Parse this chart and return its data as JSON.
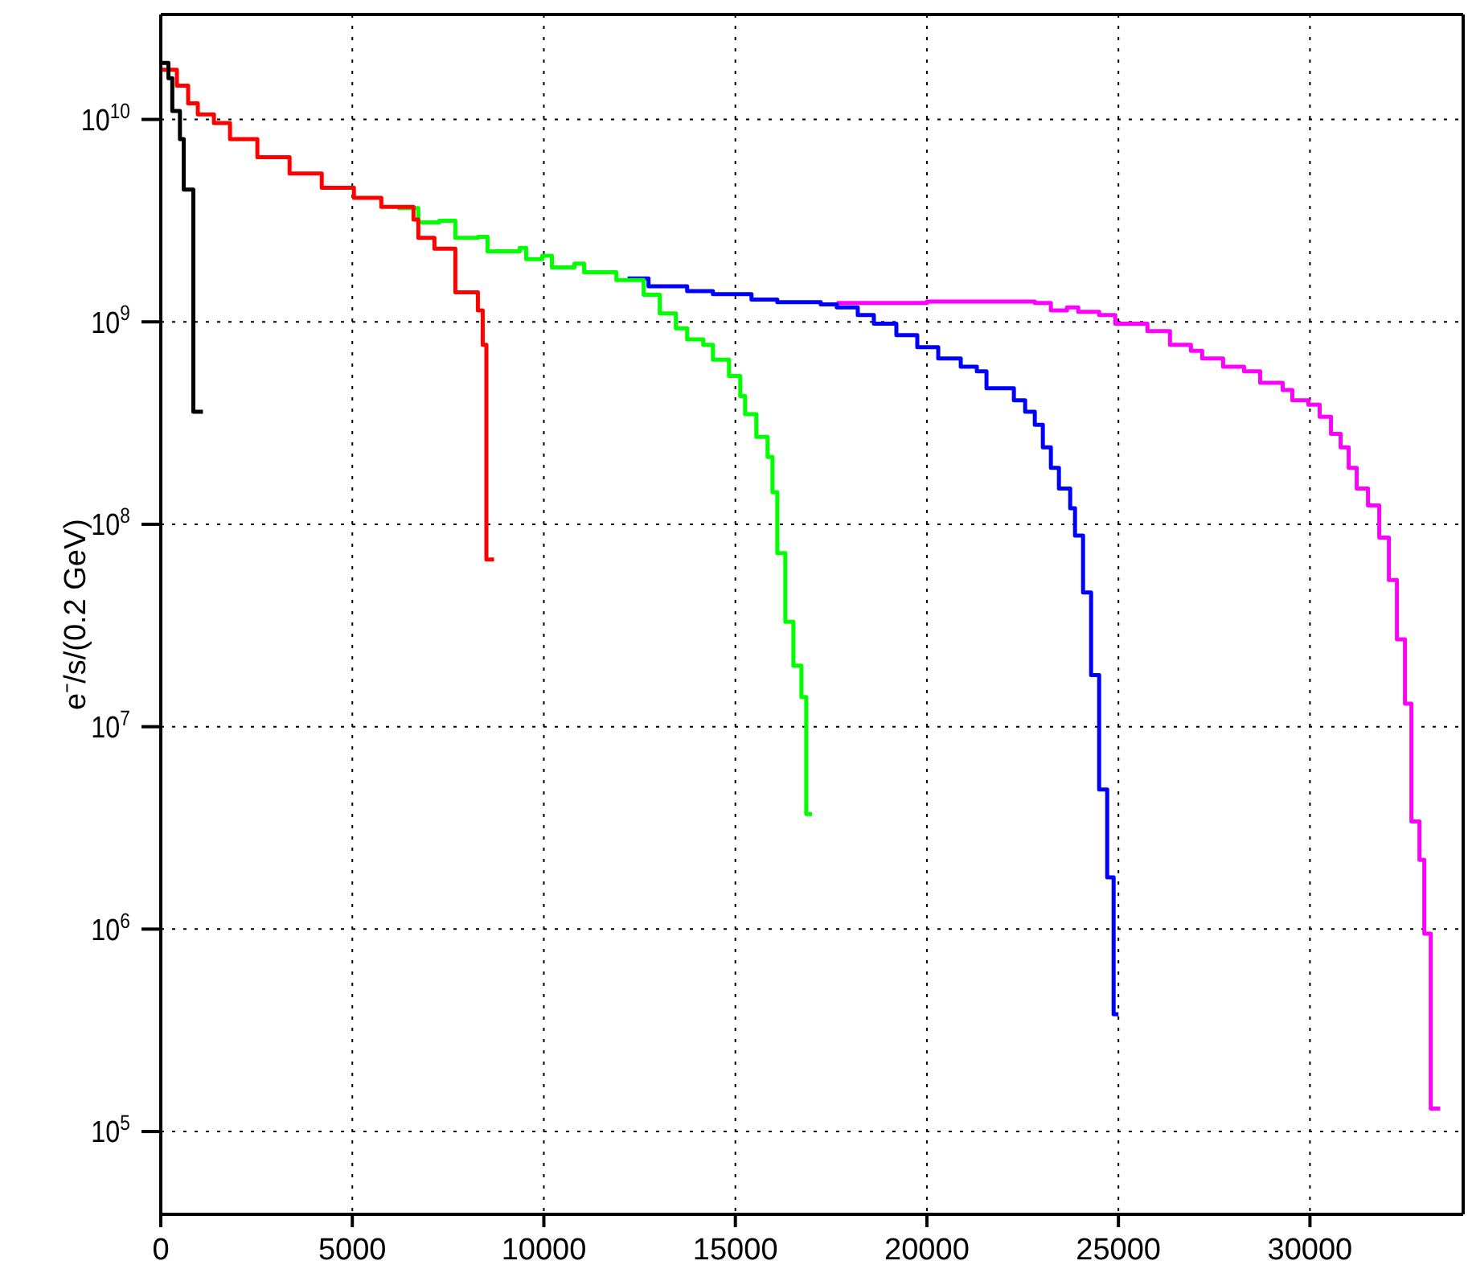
{
  "chart_data": {
    "type": "step",
    "ylabel": "e⁻/s/(0.2 GeV)",
    "log": "y",
    "grid": true,
    "xlim": [
      0,
      34000
    ],
    "xticks": [
      0,
      5000,
      10000,
      15000,
      20000,
      25000,
      30000
    ],
    "ylim": [
      39000,
      33000000000
    ],
    "yticks": [
      {
        "value": 100000,
        "label": "10$^{5}$"
      },
      {
        "value": 1000000,
        "label": "10$^{6}$"
      },
      {
        "value": 10000000,
        "label": "10$^{7}$"
      },
      {
        "value": 100000000,
        "label": "10$^{8}$"
      },
      {
        "value": 1000000000,
        "label": "10$^{9}$"
      },
      {
        "value": 10000000000,
        "label": "10$^{10}$"
      }
    ],
    "series": [
      {
        "color": "#ff00ff",
        "x": [
          17648,
          20000,
          22000,
          22817,
          23237,
          23657,
          23951,
          24497,
          24917,
          25757,
          26346,
          26893,
          27187,
          27733,
          28280,
          28700,
          29288,
          29540,
          29960,
          30254,
          30549,
          30801,
          31011,
          31221,
          31515,
          31809,
          32061,
          32271,
          32481,
          32649,
          32859,
          32985,
          33153,
          33400
        ],
        "values": [
          1240000000.0,
          1260000000.0,
          1260000000.0,
          1240000000.0,
          1140000000.0,
          1180000000.0,
          1120000000.0,
          1080000000.0,
          980000000.0,
          900000000.0,
          770000000.0,
          720000000.0,
          660000000.0,
          600000000.0,
          570000000.0,
          500000000.0,
          460000000.0,
          410000000.0,
          390000000.0,
          340000000.0,
          280000000.0,
          240000000.0,
          190000000.0,
          150000000.0,
          124000000.0,
          86000000.0,
          53000000.0,
          27000000.0,
          13000000.0,
          3400000.0,
          2200000.0,
          950000.0,
          130000.0,
          130000.0
        ]
      },
      {
        "color": "#0000ff",
        "x": [
          12186,
          12732,
          13741,
          14413,
          15421,
          16094,
          17228,
          17648,
          18195,
          18615,
          19203,
          19749,
          20296,
          20884,
          21304,
          21556,
          22271,
          22565,
          22817,
          23027,
          23237,
          23447,
          23741,
          23867,
          24077,
          24287,
          24497,
          24707,
          24875,
          25000
        ],
        "values": [
          1640000000.0,
          1500000000.0,
          1420000000.0,
          1370000000.0,
          1290000000.0,
          1250000000.0,
          1220000000.0,
          1180000000.0,
          1080000000.0,
          980000000.0,
          860000000.0,
          750000000.0,
          660000000.0,
          600000000.0,
          570000000.0,
          470000000.0,
          410000000.0,
          360000000.0,
          310000000.0,
          240000000.0,
          190000000.0,
          150000000.0,
          120000000.0,
          88000000.0,
          46000000.0,
          18000000.0,
          4900000.0,
          1800000.0,
          380000.0,
          380000.0
        ]
      },
      {
        "color": "#00ff00",
        "x": [
          6177,
          6723,
          7270,
          7690,
          8278,
          8530,
          9370,
          9539,
          9959,
          10211,
          10799,
          11051,
          11640,
          11892,
          12606,
          13026,
          13446,
          13741,
          14161,
          14413,
          14833,
          15127,
          15253,
          15547,
          15841,
          15968,
          16094,
          16304,
          16514,
          16724,
          16850,
          17000
        ],
        "values": [
          3650000000.0,
          3100000000.0,
          3160000000.0,
          2600000000.0,
          2630000000.0,
          2230000000.0,
          2320000000.0,
          2040000000.0,
          2120000000.0,
          1860000000.0,
          1940000000.0,
          1760000000.0,
          1760000000.0,
          1610000000.0,
          1360000000.0,
          1100000000.0,
          930000000.0,
          820000000.0,
          770000000.0,
          650000000.0,
          540000000.0,
          430000000.0,
          350000000.0,
          270000000.0,
          215000000.0,
          144000000.0,
          72000000.0,
          33000000.0,
          20000000.0,
          14000000.0,
          3700000.0,
          3700000.0
        ]
      },
      {
        "color": "#ff0000",
        "x": [
          0,
          420,
          714,
          966,
          1387,
          1807,
          2521,
          3362,
          4202,
          5042,
          5757,
          6597,
          6723,
          7143,
          7690,
          8278,
          8404,
          8500,
          8700
        ],
        "values": [
          17600000000.0,
          14700000000.0,
          12000000000.0,
          10600000000.0,
          9600000000.0,
          8000000000.0,
          6500000000.0,
          5400000000.0,
          4600000000.0,
          4100000000.0,
          3700000000.0,
          3200000000.0,
          2600000000.0,
          2300000000.0,
          1400000000.0,
          1140000000.0,
          770000000.0,
          67000000.0,
          67000000.0
        ]
      },
      {
        "color": "#000000",
        "x": [
          0,
          200,
          300,
          500,
          600,
          850,
          1100
        ],
        "values": [
          19000000000.0,
          16000000000.0,
          11000000000.0,
          8000000000.0,
          4500000000.0,
          360000000.0,
          360000000.0
        ]
      }
    ]
  }
}
